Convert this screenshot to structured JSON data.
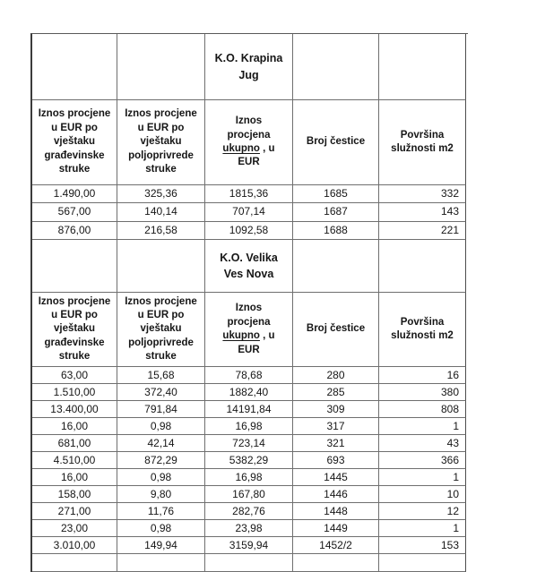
{
  "table": {
    "header": {
      "col1": "Iznos procjene\nu EUR po\nvještaku\ngrađevinske\nstruke",
      "col2": "Iznos procjene\nu EUR po\nvještaku\npoljoprivrede\nstruke",
      "col3_prefix": "Iznos\nprocjena\n",
      "col3_underlined": "ukupno",
      "col3_suffix": " , u\nEUR",
      "col4": "Broj čestice",
      "col5": "Površina\nslužnosti m2"
    },
    "sections": [
      {
        "title": "K.O. Krapina\nJug",
        "rows": [
          [
            "1.490,00",
            "325,36",
            "1815,36",
            "1685",
            "332"
          ],
          [
            "567,00",
            "140,14",
            "707,14",
            "1687",
            "143"
          ],
          [
            "876,00",
            "216,58",
            "1092,58",
            "1688",
            "221"
          ]
        ]
      },
      {
        "title": "K.O. Velika\nVes Nova",
        "rows": [
          [
            "63,00",
            "15,68",
            "78,68",
            "280",
            "16"
          ],
          [
            "1.510,00",
            "372,40",
            "1882,40",
            "285",
            "380"
          ],
          [
            "13.400,00",
            "791,84",
            "14191,84",
            "309",
            "808"
          ],
          [
            "16,00",
            "0,98",
            "16,98",
            "317",
            "1"
          ],
          [
            "681,00",
            "42,14",
            "723,14",
            "321",
            "43"
          ],
          [
            "4.510,00",
            "872,29",
            "5382,29",
            "693",
            "366"
          ],
          [
            "16,00",
            "0,98",
            "16,98",
            "1445",
            "1"
          ],
          [
            "158,00",
            "9,80",
            "167,80",
            "1446",
            "10"
          ],
          [
            "271,00",
            "11,76",
            "282,76",
            "1448",
            "12"
          ],
          [
            "23,00",
            "0,98",
            "23,98",
            "1449",
            "1"
          ],
          [
            "3.010,00",
            "149,94",
            "3159,94",
            "1452/2",
            "153"
          ]
        ]
      }
    ]
  },
  "colors": {
    "border_inner": "#6f6f6f",
    "border_outer": "#3b3b3b",
    "text": "#161616",
    "background": "#ffffff"
  }
}
